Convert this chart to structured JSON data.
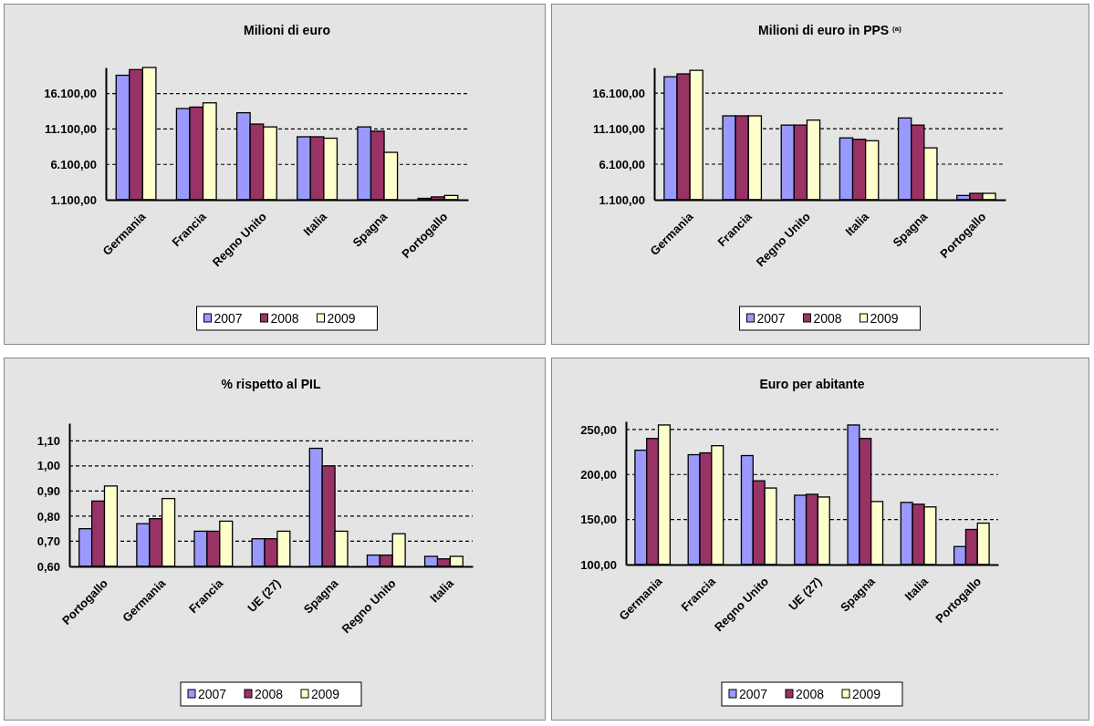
{
  "chart_data": [
    {
      "type": "bar",
      "title": "Milioni di euro",
      "categories": [
        "Germania",
        "Francia",
        "Regno Unito",
        "Italia",
        "Spagna",
        "Portogallo"
      ],
      "series": [
        {
          "name": "2007",
          "color": "#9999ff",
          "values": [
            18700,
            14000,
            13400,
            10000,
            11400,
            1300
          ]
        },
        {
          "name": "2008",
          "color": "#993366",
          "values": [
            19500,
            14200,
            11800,
            10000,
            10800,
            1500
          ]
        },
        {
          "name": "2009",
          "color": "#ffffcc",
          "values": [
            19800,
            14800,
            11400,
            9800,
            7800,
            1700
          ]
        }
      ],
      "ylim": [
        1100,
        19800
      ],
      "yticks": [
        {
          "value": 1100,
          "label": "1.100,00"
        },
        {
          "value": 6100,
          "label": "6.100,00"
        },
        {
          "value": 11100,
          "label": "11.100,00"
        },
        {
          "value": 16100,
          "label": "16.100,00"
        }
      ],
      "grid": "y",
      "legend": "bottom"
    },
    {
      "type": "bar",
      "title": "Milioni di euro in PPS $^{(a)}$",
      "categories": [
        "Germania",
        "Francia",
        "Regno Unito",
        "Italia",
        "Spagna",
        "Portogallo"
      ],
      "series": [
        {
          "name": "2007",
          "color": "#9999ff",
          "values": [
            18400,
            12900,
            11600,
            9800,
            12600,
            1700
          ]
        },
        {
          "name": "2008",
          "color": "#993366",
          "values": [
            18800,
            12900,
            11600,
            9600,
            11600,
            2000
          ]
        },
        {
          "name": "2009",
          "color": "#ffffcc",
          "values": [
            19300,
            12900,
            12300,
            9400,
            8400,
            2000
          ]
        }
      ],
      "ylim": [
        1100,
        19700
      ],
      "yticks": [
        {
          "value": 1100,
          "label": "1.100,00"
        },
        {
          "value": 6100,
          "label": "6.100,00"
        },
        {
          "value": 11100,
          "label": "11.100,00"
        },
        {
          "value": 16100,
          "label": "16.100,00"
        }
      ],
      "grid": "y",
      "legend": "bottom"
    },
    {
      "type": "bar",
      "title": "% rispetto al PIL",
      "categories": [
        "Portogallo",
        "Germania",
        "Francia",
        "UE (27)",
        "Spagna",
        "Regno Unito",
        "Italia"
      ],
      "series": [
        {
          "name": "2007",
          "color": "#9999ff",
          "values": [
            0.75,
            0.77,
            0.74,
            0.71,
            1.07,
            0.645,
            0.64
          ]
        },
        {
          "name": "2008",
          "color": "#993366",
          "values": [
            0.86,
            0.79,
            0.74,
            0.71,
            1.0,
            0.645,
            0.63
          ]
        },
        {
          "name": "2009",
          "color": "#ffffcc",
          "values": [
            0.92,
            0.87,
            0.78,
            0.74,
            0.74,
            0.73,
            0.64
          ]
        }
      ],
      "ylim": [
        0.6,
        1.17
      ],
      "yticks": [
        {
          "value": 0.6,
          "label": "0,60"
        },
        {
          "value": 0.7,
          "label": "0,70"
        },
        {
          "value": 0.8,
          "label": "0,80"
        },
        {
          "value": 0.9,
          "label": "0,90"
        },
        {
          "value": 1.0,
          "label": "1,00"
        },
        {
          "value": 1.1,
          "label": "1,10"
        }
      ],
      "grid": "y",
      "legend": "bottom"
    },
    {
      "type": "bar",
      "title": "Euro per abitante",
      "categories": [
        "Germania",
        "Francia",
        "Regno Unito",
        "UE (27)",
        "Spagna",
        "Italia",
        "Portogallo"
      ],
      "series": [
        {
          "name": "2007",
          "color": "#9999ff",
          "values": [
            227,
            222,
            221,
            177,
            255,
            169,
            120
          ]
        },
        {
          "name": "2008",
          "color": "#993366",
          "values": [
            240,
            224,
            193,
            178,
            240,
            167,
            139
          ]
        },
        {
          "name": "2009",
          "color": "#ffffcc",
          "values": [
            255,
            232,
            185,
            175,
            170,
            164,
            146
          ]
        }
      ],
      "ylim": [
        100,
        259
      ],
      "yticks": [
        {
          "value": 100,
          "label": "100,00"
        },
        {
          "value": 150,
          "label": "150,00"
        },
        {
          "value": 200,
          "label": "200,00"
        },
        {
          "value": 250,
          "label": "250,00"
        }
      ],
      "grid": "y",
      "legend": "bottom"
    }
  ]
}
